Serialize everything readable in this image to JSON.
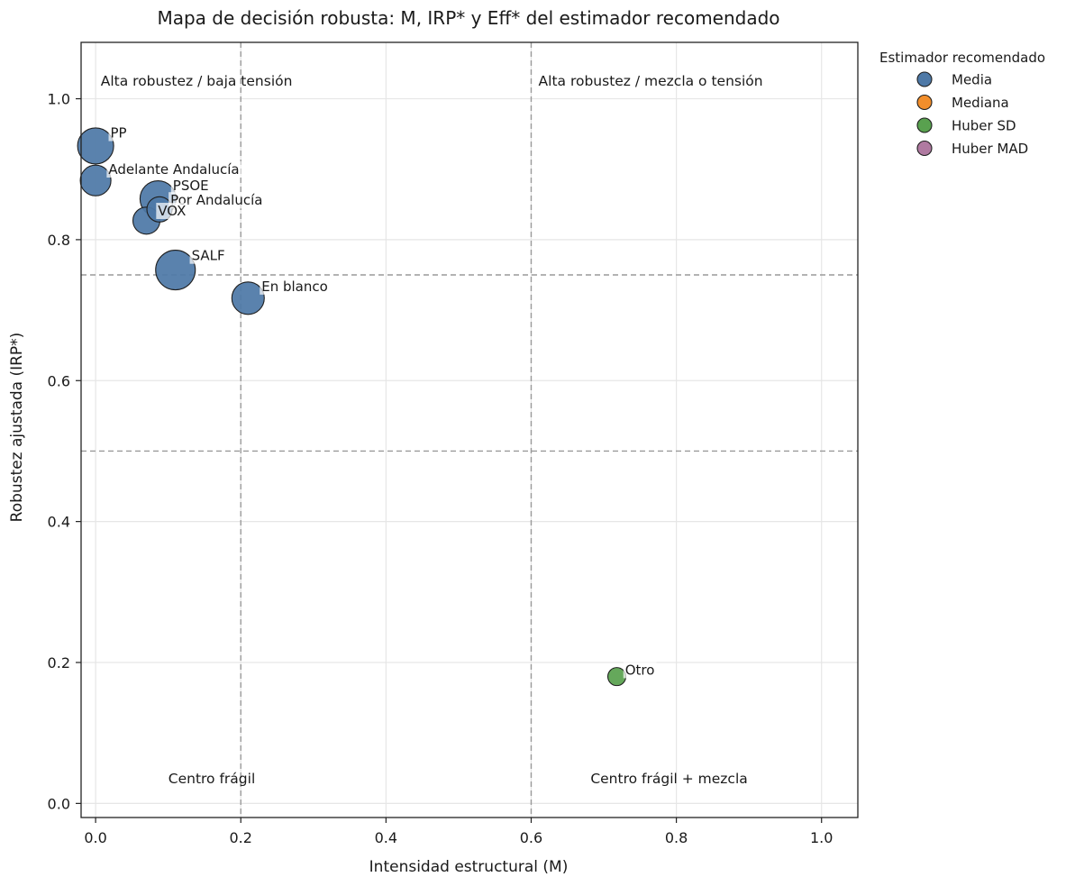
{
  "chart_data": {
    "type": "scatter",
    "title": "Mapa de decisión robusta: M, IRP* y Eff* del estimador recomendado",
    "xlabel": "Intensidad estructural (M)",
    "ylabel": "Robustez ajustada (IRP*)",
    "xlim": [
      -0.02,
      1.05
    ],
    "ylim": [
      -0.02,
      1.08
    ],
    "xticks": [
      0.0,
      0.2,
      0.4,
      0.6,
      0.8,
      1.0
    ],
    "xtick_labels": [
      "0.0",
      "0.2",
      "0.4",
      "0.6",
      "0.8",
      "1.0"
    ],
    "yticks": [
      0.0,
      0.2,
      0.4,
      0.6,
      0.8,
      1.0
    ],
    "ytick_labels": [
      "0.0",
      "0.2",
      "0.4",
      "0.6",
      "0.8",
      "1.0"
    ],
    "grid": true,
    "reference_lines": {
      "vertical": [
        0.2,
        0.6
      ],
      "horizontal": [
        0.75,
        0.5
      ]
    },
    "region_labels": [
      {
        "text": "Alta robustez / baja tensión",
        "x": 0.007,
        "y": 1.025
      },
      {
        "text": "Alta robustez / mezcla o tensión",
        "x": 0.61,
        "y": 1.025
      },
      {
        "text": "Centro frágil",
        "x": 0.16,
        "y": 0.035
      },
      {
        "text": "Centro frágil + mezcla",
        "x": 0.79,
        "y": 0.035
      }
    ],
    "points": [
      {
        "label": "PP",
        "x": 0.0,
        "y": 0.933,
        "estimator": "Media",
        "size": 20
      },
      {
        "label": "Adelante Andalucía",
        "x": 0.0,
        "y": 0.884,
        "estimator": "Media",
        "size": 17
      },
      {
        "label": "PSOE",
        "x": 0.086,
        "y": 0.858,
        "estimator": "Media",
        "size": 20
      },
      {
        "label": "Por Andalucía",
        "x": 0.088,
        "y": 0.843,
        "estimator": "Media",
        "size": 14
      },
      {
        "label": "VOX",
        "x": 0.07,
        "y": 0.827,
        "estimator": "Media",
        "size": 15
      },
      {
        "label": "SALF",
        "x": 0.11,
        "y": 0.757,
        "estimator": "Media",
        "size": 22
      },
      {
        "label": "En blanco",
        "x": 0.21,
        "y": 0.717,
        "estimator": "Media",
        "size": 18
      },
      {
        "label": "Otro",
        "x": 0.718,
        "y": 0.18,
        "estimator": "Huber SD",
        "size": 10
      }
    ],
    "legend": {
      "title": "Estimador recomendado",
      "placement": "outside-right-top",
      "entries": [
        {
          "name": "Media",
          "color": "#4e79a7"
        },
        {
          "name": "Mediana",
          "color": "#f28e2b"
        },
        {
          "name": "Huber SD",
          "color": "#59a14f"
        },
        {
          "name": "Huber MAD",
          "color": "#b07aa1"
        }
      ]
    },
    "colors": {
      "Media": "#4e79a7",
      "Mediana": "#f28e2b",
      "Huber SD": "#59a14f",
      "Huber MAD": "#b07aa1"
    }
  }
}
